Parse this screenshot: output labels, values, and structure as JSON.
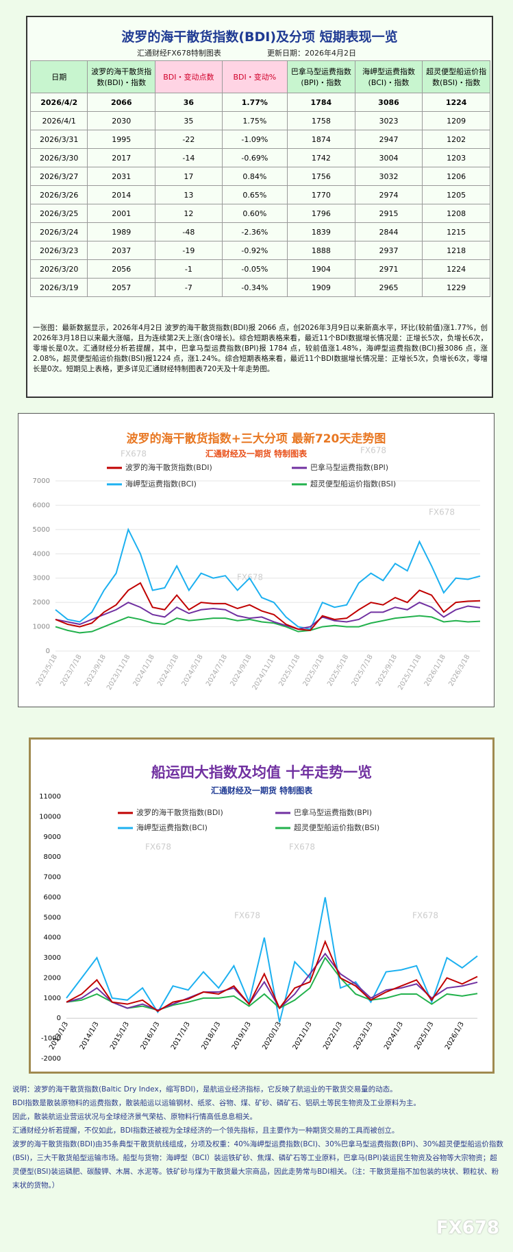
{
  "table": {
    "title": "波罗的海干散货指数(BDI)及分项 短期表现一览",
    "subtitle": "汇通财经FX678特制图表",
    "update": "更新日期：2026年4月2日",
    "header": [
      "日期",
      "波罗的海干散货指数(BDI)・指数",
      "BDI・变动点数",
      "BDI・变动%",
      "巴拿马型运费指数(BPI)・指数",
      "海岬型运费指数(BCI)・指数",
      "超灵便型船运价指数(BSI)・指数"
    ],
    "rows": [
      [
        "2026/4/2",
        "2066",
        "36",
        "1.77%",
        "1784",
        "3086",
        "1224"
      ],
      [
        "2026/4/1",
        "2030",
        "35",
        "1.75%",
        "1758",
        "3023",
        "1209"
      ],
      [
        "2026/3/31",
        "1995",
        "-22",
        "-1.09%",
        "1874",
        "2947",
        "1202"
      ],
      [
        "2026/3/30",
        "2017",
        "-14",
        "-0.69%",
        "1742",
        "3004",
        "1203"
      ],
      [
        "2026/3/27",
        "2031",
        "17",
        "0.84%",
        "1756",
        "3032",
        "1206"
      ],
      [
        "2026/3/26",
        "2014",
        "13",
        "0.65%",
        "1770",
        "2974",
        "1205"
      ],
      [
        "2026/3/25",
        "2001",
        "12",
        "0.60%",
        "1796",
        "2915",
        "1208"
      ],
      [
        "2026/3/24",
        "1989",
        "-48",
        "-2.36%",
        "1839",
        "2844",
        "1215"
      ],
      [
        "2026/3/23",
        "2037",
        "-19",
        "-0.92%",
        "1888",
        "2937",
        "1218"
      ],
      [
        "2026/3/20",
        "2056",
        "-1",
        "-0.05%",
        "1904",
        "2971",
        "1224"
      ],
      [
        "2026/3/19",
        "2057",
        "-7",
        "-0.34%",
        "1909",
        "2965",
        "1229"
      ]
    ]
  },
  "summary": "一张图：最新数据显示，2026年4月2日 波罗的海干散货指数(BDI)报 2066 点，创2026年3月9日以来新高水平，环比(较前值)涨1.77%，创2026年3月18日以来最大涨幅，且为连续第2天上涨(含0增长)。综合短期表格来看，最近11个BDI数据增长情况是：正增长5次，负增长6次，零增长是0次。汇通财经分析若提醒，其中，巴拿马型运费指数(BPI)报 1784 点，较前值涨1.48%，海岬型运费指数(BCI)报3086 点，涨2.08%，超灵便型船运价指数(BSI)报1224 点，涨1.24%。综合短期表格来看，最近11个BDI数据增长情况是：正增长5次，负增长6次，零增长是0次。短期见上表格，更多详见汇通财经特制图表720天及十年走势图。",
  "chart_data": [
    {
      "type": "line",
      "title": "波罗的海干散货指数+三大分项  最新720天走势图",
      "subtitle": "汇通财经及一期货 特制图表",
      "title_color": "#e87722",
      "subtitle_color": "#e8501a",
      "watermark": "FX678",
      "grid": true,
      "legend": "top",
      "categories": [
        "2023/5/18",
        null,
        "2023/7/18",
        null,
        "2023/9/18",
        null,
        "2023/11/18",
        null,
        "2024/1/18",
        null,
        "2024/3/18",
        null,
        "2024/5/18",
        null,
        "2024/7/18",
        null,
        "2024/9/18",
        null,
        "2024/11/18",
        null,
        "2025/1/18",
        null,
        "2025/3/18",
        null,
        "2025/5/18",
        null,
        "2025/7/18",
        null,
        "2025/9/18",
        null,
        "2025/11/18",
        null,
        "2026/1/18",
        null,
        "2026/3/18",
        null
      ],
      "series": [
        {
          "name": "波罗的海干散货指数(BDI)",
          "color": "#c00000",
          "values": [
            1300,
            1100,
            1000,
            1150,
            1600,
            1900,
            2500,
            2800,
            1800,
            1700,
            2300,
            1700,
            2000,
            1950,
            1950,
            1750,
            1900,
            1650,
            1500,
            1100,
            900,
            850,
            1450,
            1300,
            1350,
            1700,
            2000,
            1900,
            2200,
            2000,
            2500,
            2300,
            1600,
            2000,
            2050,
            2066
          ]
        },
        {
          "name": "巴拿马型运费指数(BPI)",
          "color": "#7030a0",
          "values": [
            1300,
            1200,
            1100,
            1300,
            1500,
            1700,
            2000,
            1800,
            1500,
            1400,
            1800,
            1550,
            1700,
            1750,
            1700,
            1450,
            1350,
            1400,
            1200,
            1050,
            900,
            1000,
            1400,
            1250,
            1200,
            1300,
            1600,
            1600,
            1800,
            1700,
            2000,
            1800,
            1400,
            1700,
            1850,
            1784
          ]
        },
        {
          "name": "海岬型运费指数(BCI)",
          "color": "#1cb0f0",
          "values": [
            1700,
            1300,
            1200,
            1600,
            2500,
            3200,
            5000,
            4000,
            2500,
            2600,
            3500,
            2500,
            3200,
            3000,
            3100,
            2500,
            3000,
            2200,
            2000,
            1400,
            1000,
            900,
            2000,
            1800,
            1900,
            2800,
            3200,
            2900,
            3600,
            3300,
            4500,
            3500,
            2400,
            3000,
            2950,
            3086
          ]
        },
        {
          "name": "超灵便型船运价指数(BSI)",
          "color": "#22b14c",
          "values": [
            1000,
            850,
            750,
            800,
            1000,
            1200,
            1400,
            1300,
            1150,
            1100,
            1350,
            1250,
            1300,
            1350,
            1350,
            1250,
            1300,
            1200,
            1150,
            1000,
            800,
            850,
            1000,
            1050,
            1000,
            1000,
            1150,
            1250,
            1350,
            1400,
            1450,
            1400,
            1200,
            1250,
            1200,
            1224
          ]
        }
      ],
      "ylim": [
        0,
        7000
      ],
      "yticks": [
        0,
        1000,
        2000,
        3000,
        4000,
        5000,
        6000,
        7000
      ]
    },
    {
      "type": "line",
      "title": "船运四大指数及均值 十年走势一览",
      "subtitle": "汇通财经及一期货 特制图表",
      "title_color": "#7030a0",
      "subtitle_color": "#1f3a93",
      "watermark": "FX678",
      "grid": false,
      "legend": "top",
      "categories": [
        "2013/1/3",
        null,
        "2014/1/3",
        null,
        "2015/1/3",
        null,
        "2016/1/3",
        null,
        "2017/1/3",
        null,
        "2018/1/3",
        null,
        "2019/1/3",
        null,
        "2020/1/3",
        null,
        "2021/1/3",
        null,
        "2022/1/3",
        null,
        "2023/1/3",
        null,
        "2024/1/3",
        null,
        "2025/1/3",
        null,
        "2026/1/3",
        null
      ],
      "series": [
        {
          "name": "波罗的海干散货指数(BDI)",
          "color": "#c00000",
          "values": [
            800,
            1200,
            1900,
            800,
            700,
            900,
            350,
            800,
            950,
            1300,
            1200,
            1600,
            700,
            2200,
            500,
            1500,
            1800,
            3800,
            2000,
            1600,
            900,
            1300,
            1600,
            1900,
            900,
            2000,
            1700,
            2066
          ]
        },
        {
          "name": "巴拿马型运费指数(BPI)",
          "color": "#7030a0",
          "values": [
            800,
            1000,
            1500,
            800,
            500,
            700,
            400,
            700,
            1000,
            1300,
            1300,
            1500,
            700,
            1800,
            500,
            1200,
            2200,
            3200,
            2200,
            1700,
            1000,
            1400,
            1500,
            1700,
            1000,
            1500,
            1600,
            1784
          ]
        },
        {
          "name": "海岬型运费指数(BCI)",
          "color": "#1cb0f0",
          "values": [
            1000,
            2000,
            3000,
            1000,
            900,
            1500,
            300,
            1600,
            1400,
            2300,
            1500,
            2600,
            800,
            4000,
            -200,
            2800,
            2000,
            6000,
            1500,
            1800,
            800,
            2300,
            2400,
            2600,
            800,
            3000,
            2500,
            3086
          ]
        },
        {
          "name": "超灵便型船运价指数(BSI)",
          "color": "#22b14c",
          "values": [
            800,
            900,
            1200,
            800,
            500,
            600,
            400,
            650,
            800,
            1000,
            1000,
            1100,
            600,
            1200,
            500,
            900,
            1500,
            3000,
            2000,
            1200,
            900,
            1000,
            1200,
            1200,
            700,
            1200,
            1100,
            1224
          ]
        }
      ],
      "ylim": [
        -2000,
        11000
      ],
      "yticks": [
        -2000,
        -1000,
        0,
        1000,
        2000,
        3000,
        4000,
        5000,
        6000,
        7000,
        8000,
        9000,
        10000,
        11000
      ]
    }
  ],
  "notes": [
    "说明：波罗的海干散货指数(Baltic Dry Index，缩写BDI)，是航运业经济指标，它反映了航运业的干散货交易量的动态。",
    "BDI指数是散装原物料的运费指数，散装船运以运输钢材、纸浆、谷物、煤、矿砂、磷矿石、铝矾土等民生物资及工业原料为主。",
    "因此，散装航运业营运状况与全球经济景气荣枯、原物料行情高低息息相关。",
    "汇通财经分析若提醒，不仅如此，BDI指数还被视为全球经济的一个领先指标，且主要作为一种期货交易的工具而被创立。",
    "波罗的海干散货指数(BDI)由35条典型干散货航线组成，分项及权重：40%海岬型运费指数(BCI)、30%巴拿马型运费指数(BPI)、30%超灵便型船运价指数(BSI)，三大干散货船型运输市场。船型与货物：海岬型（BCI）装运铁矿砂、焦煤、磷矿石等工业原料，巴拿马(BPI)装运民生物资及谷物等大宗物资；超灵便型(BSI)装运磷肥、碳酸钾、木屑、水泥等。铁矿砂与煤为干散货最大宗商品，因此走势常与BDI相关。（注：干散货是指不加包装的块状、颗粒状、粉末状的货物。）"
  ],
  "logo": "FX678"
}
